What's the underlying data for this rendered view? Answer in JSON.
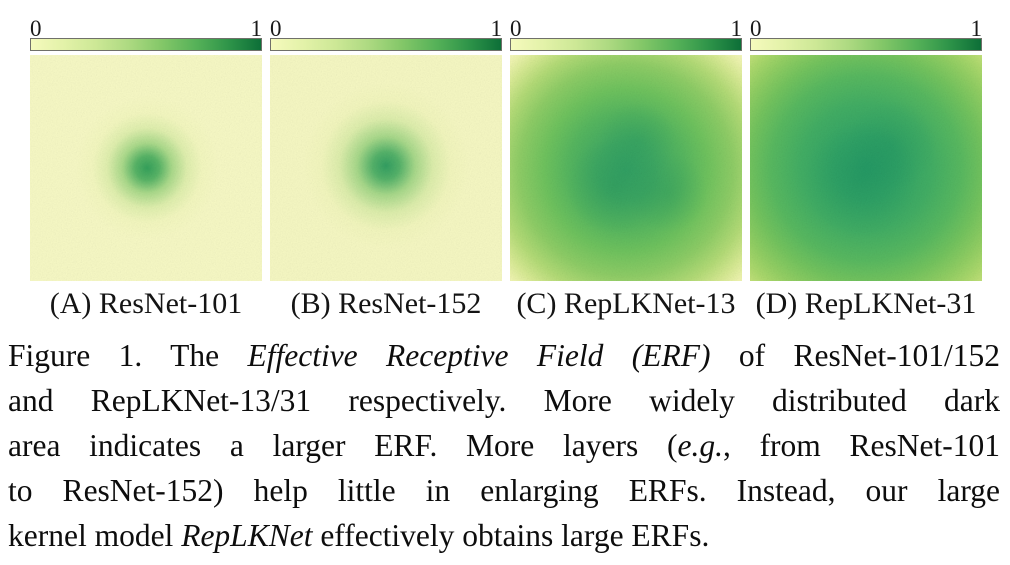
{
  "figure": {
    "colorbar": {
      "min_label": "0",
      "max_label": "1",
      "gradient_ends": [
        "#f5fabd",
        "#0d6f38"
      ],
      "colormap": "YlGn"
    },
    "panels": [
      {
        "key": "A",
        "label": "(A) ResNet-101"
      },
      {
        "key": "B",
        "label": "(B) ResNet-152"
      },
      {
        "key": "C",
        "label": "(C) RepLKNet-13"
      },
      {
        "key": "D",
        "label": "(D) RepLKNet-31"
      }
    ]
  },
  "caption": {
    "lines": [
      [
        {
          "t": "Figure 1. The ",
          "i": false
        },
        {
          "t": "Effective Receptive Field (ERF)",
          "i": true
        },
        {
          "t": " of ResNet-101/152",
          "i": false
        }
      ],
      [
        {
          "t": "and RepLKNet-13/31 respectively. More widely distributed dark",
          "i": false
        }
      ],
      [
        {
          "t": "area indicates a larger ERF. More layers (",
          "i": false
        },
        {
          "t": "e.g.",
          "i": true
        },
        {
          "t": ", from ResNet-101",
          "i": false
        }
      ],
      [
        {
          "t": "to ResNet-152) help little in enlarging ERFs. Instead, our large",
          "i": false
        }
      ],
      [
        {
          "t": "kernel model ",
          "i": false
        },
        {
          "t": "RepLKNet",
          "i": true
        },
        {
          "t": " effectively obtains large ERFs.",
          "i": false
        }
      ]
    ]
  },
  "chart_data": [
    {
      "type": "heatmap",
      "title": "(A) ResNet-101",
      "value_range": [
        0,
        1
      ],
      "colormap": "YlGn",
      "erf_pattern": "small concentrated dark blob at center, ~20% of panel width, rest near 0 (pale yellow)"
    },
    {
      "type": "heatmap",
      "title": "(B) ResNet-152",
      "value_range": [
        0,
        1
      ],
      "colormap": "YlGn",
      "erf_pattern": "slightly larger concentrated center blob, ~25% of panel width, rest near 0"
    },
    {
      "type": "heatmap",
      "title": "(C) RepLKNet-13",
      "value_range": [
        0,
        1
      ],
      "colormap": "YlGn",
      "erf_pattern": "broad mid-to-high activation covering most of panel, darker irregular core, light yellow only at thin border/corners"
    },
    {
      "type": "heatmap",
      "title": "(D) RepLKNet-31",
      "value_range": [
        0,
        1
      ],
      "colormap": "YlGn",
      "erf_pattern": "largest ERF: dark green activation over nearly entire panel, slightly lighter corners"
    }
  ]
}
